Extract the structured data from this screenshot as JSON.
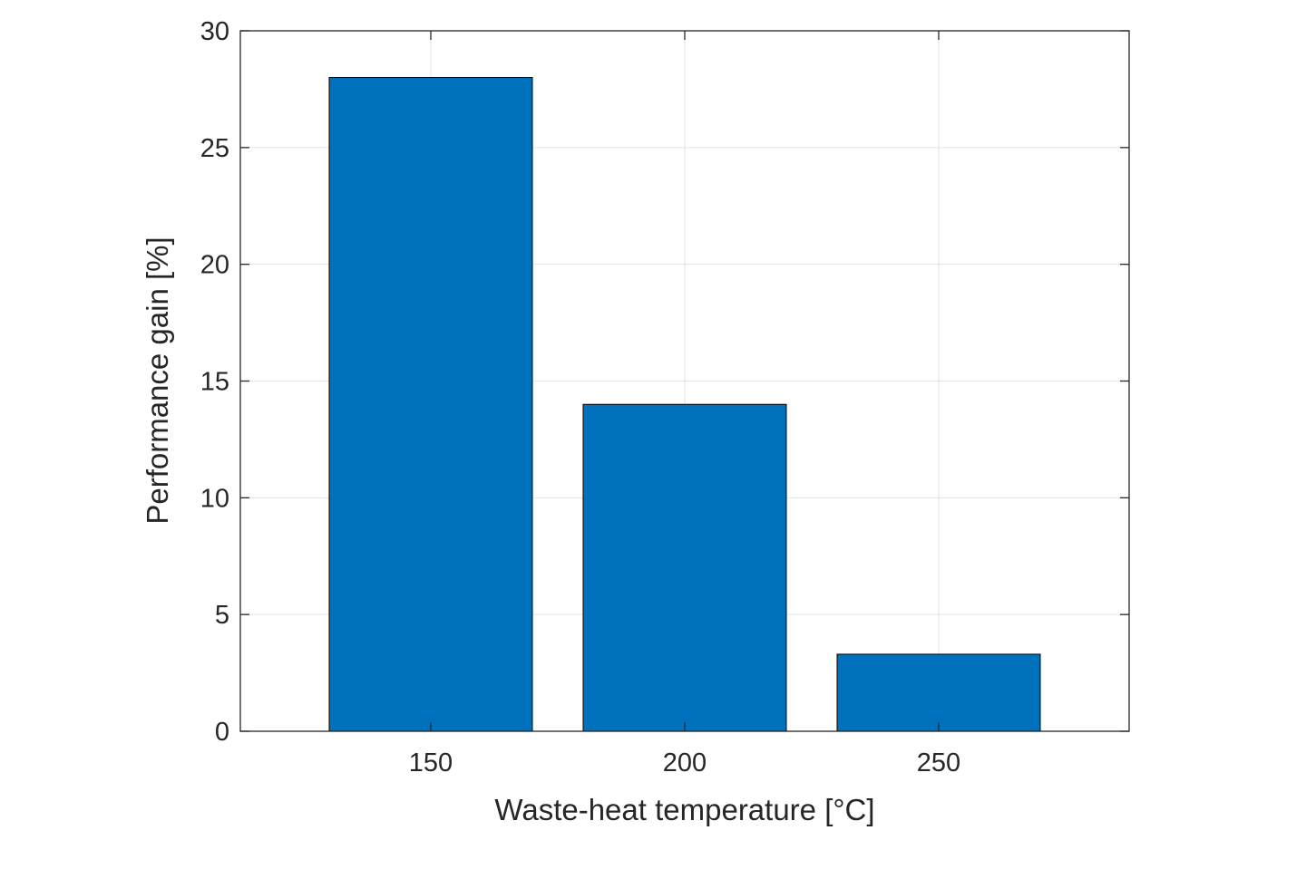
{
  "chart_data": {
    "type": "bar",
    "title": "",
    "xlabel": "Waste-heat temperature [°C]",
    "ylabel": "Performance gain [%]",
    "categories": [
      "150",
      "200",
      "250"
    ],
    "x": [
      150,
      200,
      250
    ],
    "values": [
      28,
      14,
      3.3
    ],
    "xlim": [
      112.5,
      287.5
    ],
    "ylim": [
      0,
      30
    ],
    "yticks": [
      "0",
      "5",
      "10",
      "15",
      "20",
      "25",
      "30"
    ],
    "grid": true,
    "bar_color": "#0072BD",
    "edge_color": "#000000"
  }
}
